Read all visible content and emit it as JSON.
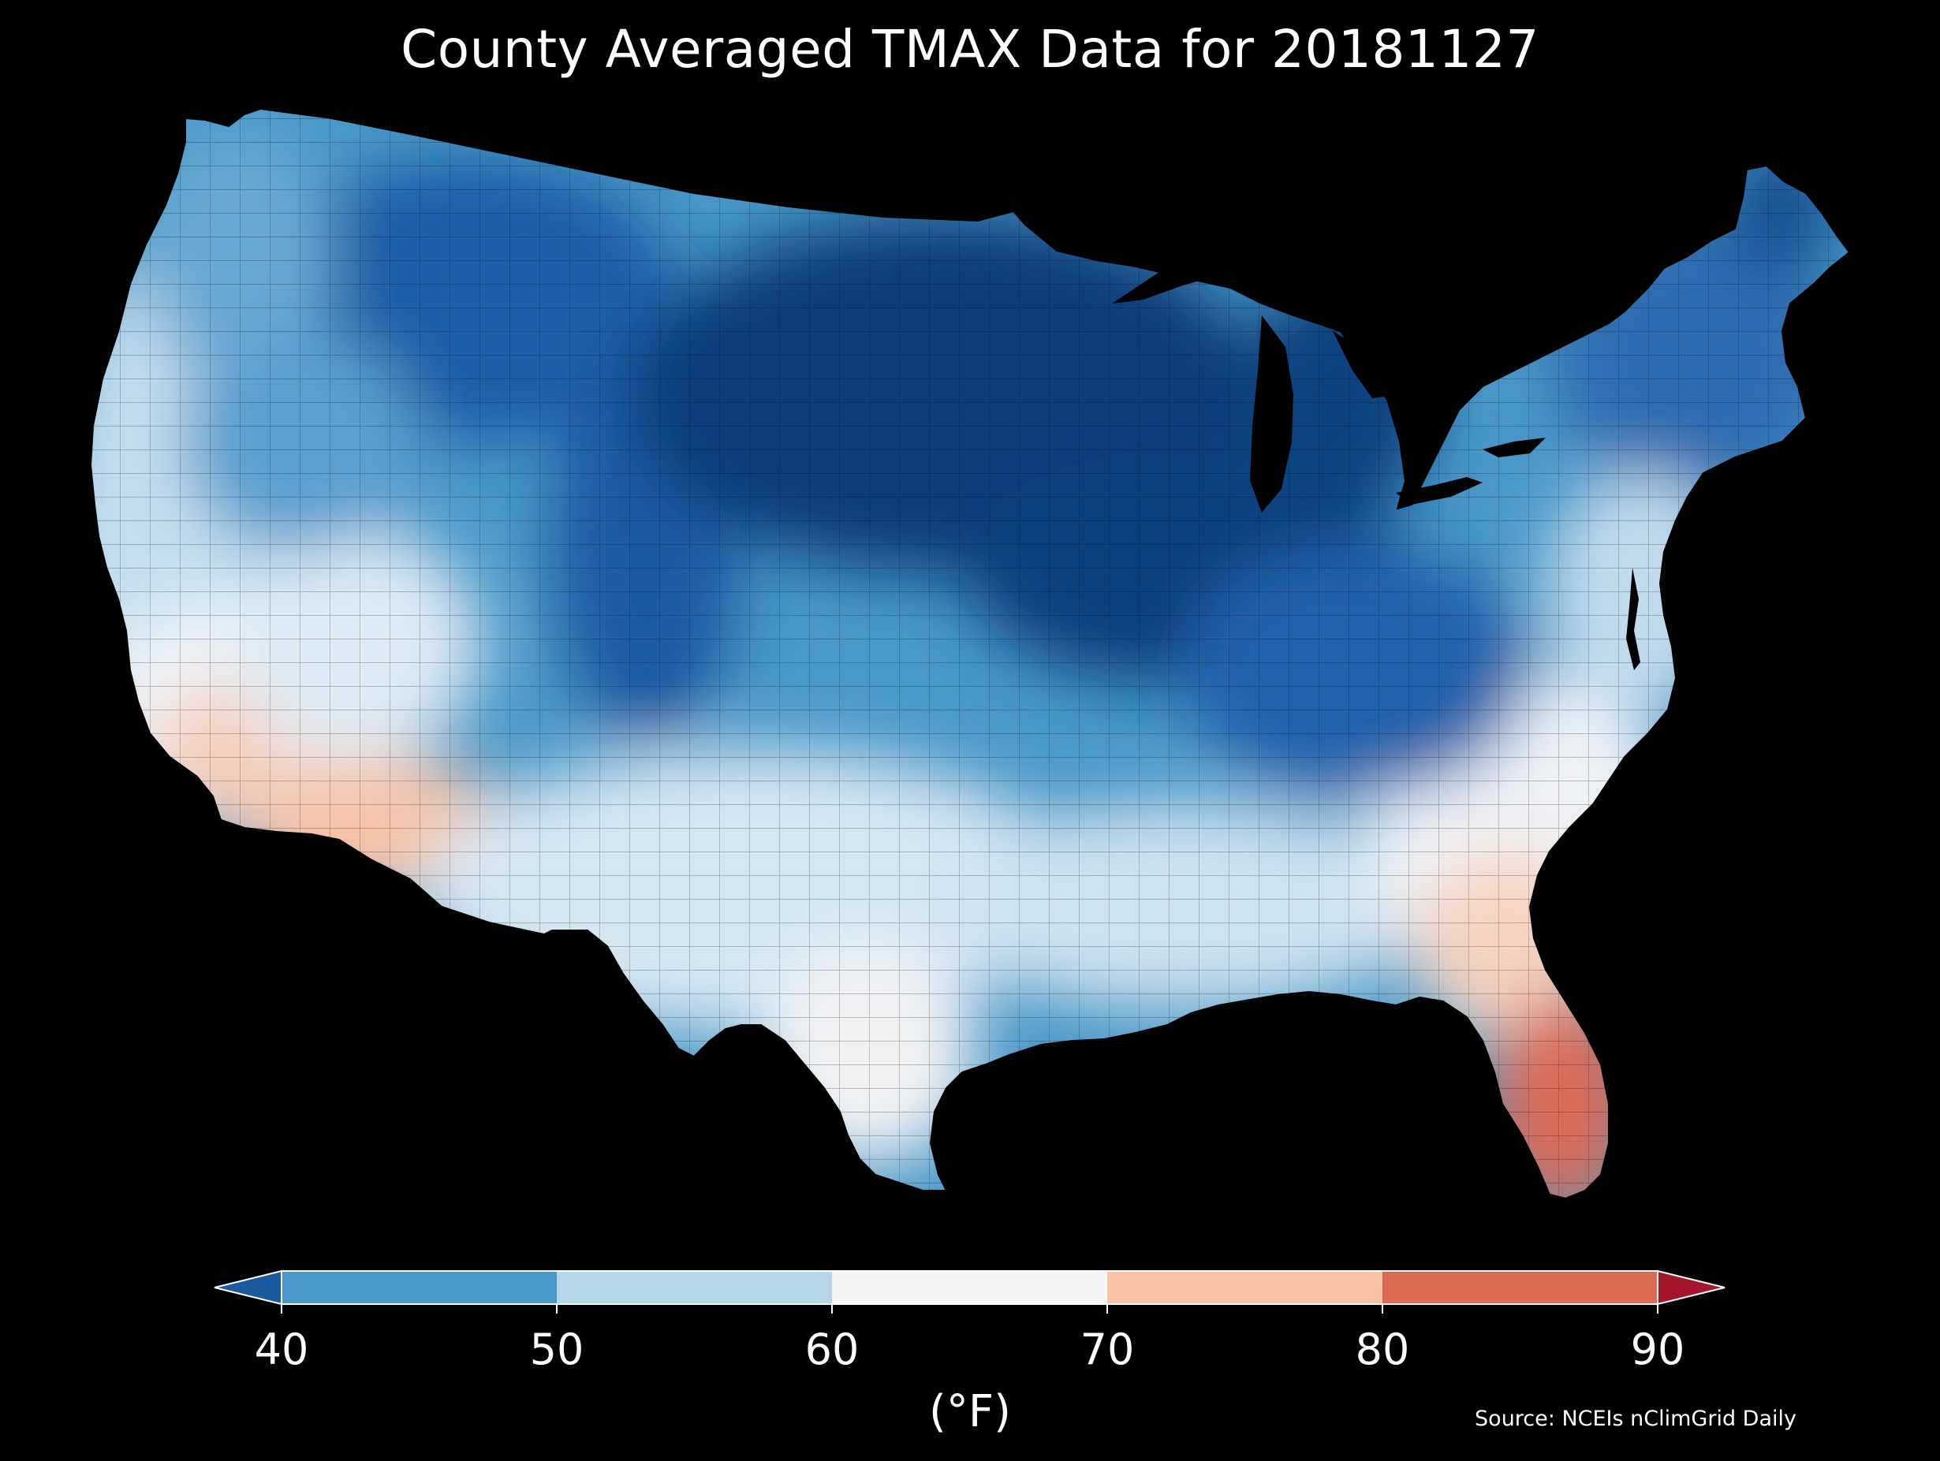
{
  "title": "County Averaged TMAX Data for 20181127",
  "colorbar": {
    "ticks": [
      "40",
      "50",
      "60",
      "70",
      "80",
      "90"
    ],
    "bins": [
      {
        "range": "<40",
        "color": "#1c5aa0"
      },
      {
        "range": "40-50",
        "color": "#4a98c9"
      },
      {
        "range": "50-60",
        "color": "#b5d7ea"
      },
      {
        "range": "60-70",
        "color": "#f5f5f5"
      },
      {
        "range": "70-80",
        "color": "#f8c2a6"
      },
      {
        "range": "80-90",
        "color": "#dc6a55"
      },
      {
        "range": ">90",
        "color": "#a3162b"
      }
    ],
    "unit": "(°F)"
  },
  "source": "Source: NCEIs nClimGrid Daily",
  "map": {
    "region": "Contiguous United States",
    "variable": "TMAX",
    "date": "20181127",
    "background": "#000000",
    "border_color": "#000000"
  }
}
